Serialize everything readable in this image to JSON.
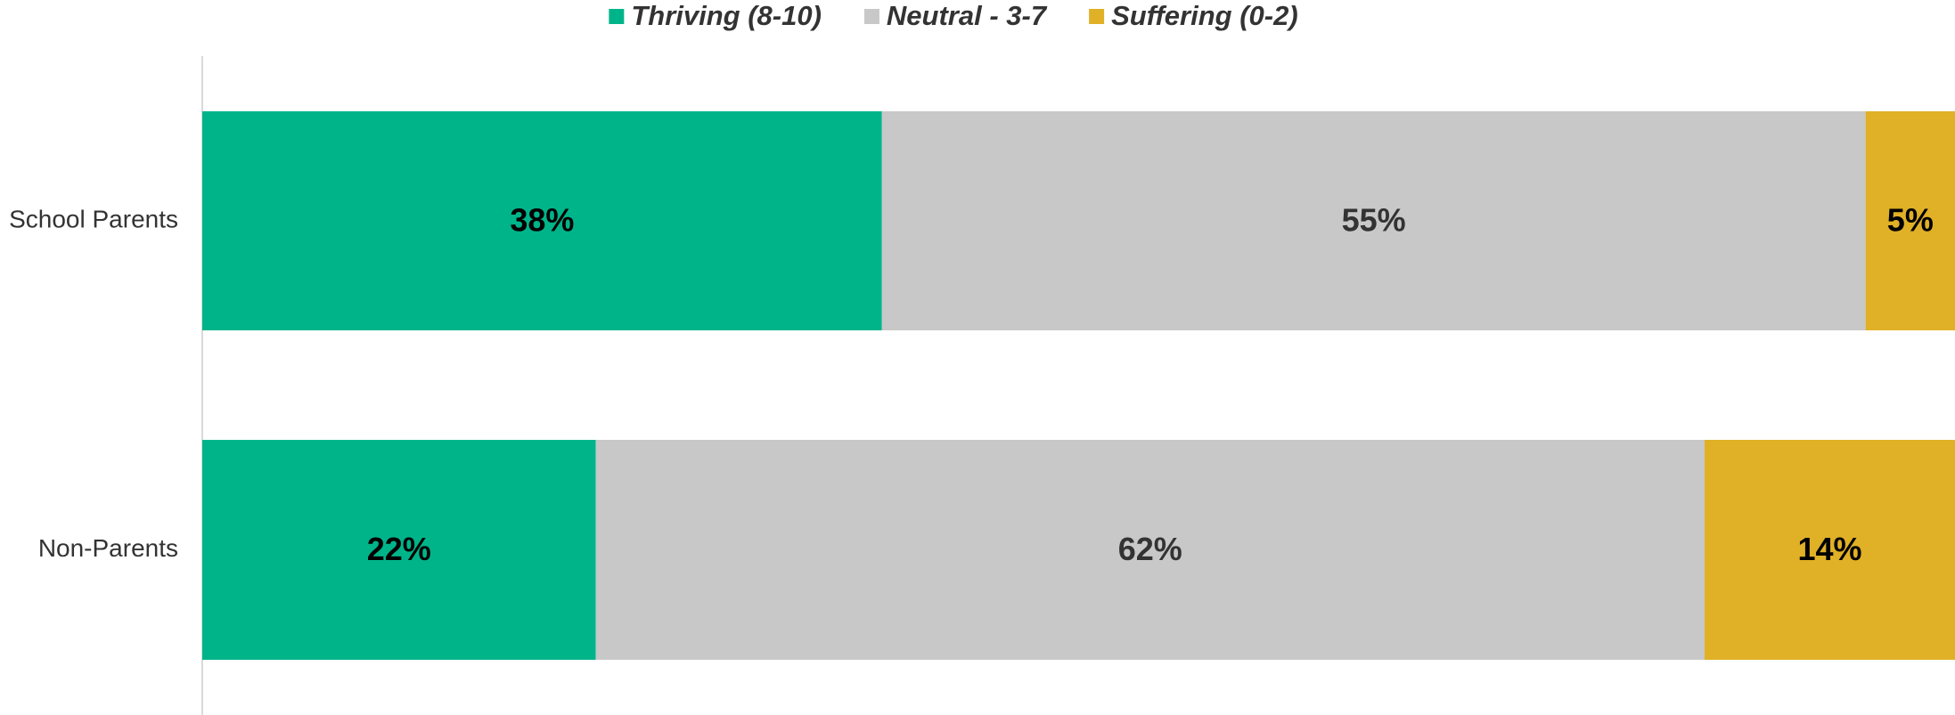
{
  "chart_data": {
    "type": "stacked_barh",
    "categories": [
      "School Parents",
      "Non-Parents"
    ],
    "series": [
      {
        "name": "Thriving (8-10)",
        "color": "#00b48a",
        "values": [
          38,
          22
        ],
        "value_labels": [
          "38%",
          "22%"
        ]
      },
      {
        "name": "Neutral - 3-7",
        "color": "#c8c8c8",
        "values": [
          55,
          62
        ],
        "value_labels": [
          "55%",
          "62%"
        ]
      },
      {
        "name": "Suffering (0-2)",
        "color": "#e0b026",
        "values": [
          5,
          14
        ],
        "value_labels": [
          "5%",
          "14%"
        ]
      }
    ],
    "xlim": [
      0,
      98
    ],
    "legend": "top"
  }
}
